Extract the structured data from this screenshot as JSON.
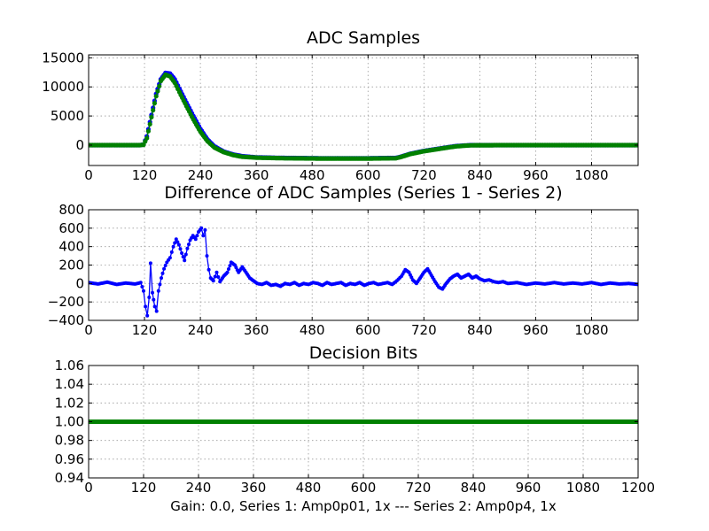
{
  "figure": {
    "xlabel": "Gain: 0.0, Series 1: Amp0p01, 1x --- Series 2: Amp0p4, 1x"
  },
  "chart_data": [
    {
      "type": "scatter",
      "title": "ADC Samples",
      "xlim": [
        0,
        1180
      ],
      "ylim": [
        -3500,
        15500
      ],
      "xticks": [
        0,
        120,
        240,
        360,
        480,
        600,
        720,
        840,
        960,
        1080
      ],
      "yticks": [
        0,
        5000,
        10000,
        15000
      ],
      "grid": true,
      "style": "dots connected by line",
      "series": [
        {
          "color": "#0000ff",
          "points": [
            [
              0,
              0
            ],
            [
              110,
              0
            ],
            [
              118,
              100
            ],
            [
              125,
              1500
            ],
            [
              135,
              5200
            ],
            [
              145,
              8800
            ],
            [
              155,
              11300
            ],
            [
              165,
              12400
            ],
            [
              175,
              12300
            ],
            [
              185,
              11300
            ],
            [
              195,
              9700
            ],
            [
              210,
              7300
            ],
            [
              225,
              5000
            ],
            [
              240,
              2800
            ],
            [
              255,
              1000
            ],
            [
              270,
              -200
            ],
            [
              290,
              -1100
            ],
            [
              310,
              -1600
            ],
            [
              330,
              -1900
            ],
            [
              360,
              -2100
            ],
            [
              420,
              -2200
            ],
            [
              500,
              -2250
            ],
            [
              600,
              -2250
            ],
            [
              660,
              -2200
            ],
            [
              670,
              -2000
            ],
            [
              690,
              -1500
            ],
            [
              720,
              -1000
            ],
            [
              760,
              -500
            ],
            [
              790,
              -150
            ],
            [
              820,
              0
            ],
            [
              900,
              0
            ],
            [
              1000,
              0
            ],
            [
              1180,
              0
            ]
          ]
        },
        {
          "color": "#008000",
          "points": [
            [
              0,
              0
            ],
            [
              110,
              0
            ],
            [
              118,
              60
            ],
            [
              125,
              1200
            ],
            [
              135,
              4800
            ],
            [
              145,
              8400
            ],
            [
              155,
              11000
            ],
            [
              165,
              12100
            ],
            [
              175,
              11800
            ],
            [
              185,
              10700
            ],
            [
              195,
              9100
            ],
            [
              210,
              6700
            ],
            [
              225,
              4400
            ],
            [
              240,
              2300
            ],
            [
              255,
              700
            ],
            [
              270,
              -400
            ],
            [
              290,
              -1200
            ],
            [
              310,
              -1700
            ],
            [
              330,
              -2000
            ],
            [
              360,
              -2150
            ],
            [
              420,
              -2250
            ],
            [
              500,
              -2300
            ],
            [
              600,
              -2300
            ],
            [
              660,
              -2250
            ],
            [
              670,
              -2050
            ],
            [
              690,
              -1550
            ],
            [
              720,
              -1050
            ],
            [
              760,
              -550
            ],
            [
              790,
              -200
            ],
            [
              820,
              -30
            ],
            [
              900,
              0
            ],
            [
              1000,
              0
            ],
            [
              1180,
              0
            ]
          ]
        }
      ]
    },
    {
      "type": "line",
      "title": "Difference of ADC Samples (Series 1 - Series 2)",
      "xlim": [
        0,
        1180
      ],
      "ylim": [
        -400,
        800
      ],
      "xticks": [
        0,
        120,
        240,
        360,
        480,
        600,
        720,
        840,
        960,
        1080
      ],
      "yticks": [
        -400,
        -200,
        0,
        200,
        400,
        600,
        800
      ],
      "grid": true,
      "style": "dots connected by line",
      "series": [
        {
          "color": "#0000ff",
          "points": [
            [
              0,
              10
            ],
            [
              20,
              -5
            ],
            [
              40,
              15
            ],
            [
              60,
              -10
            ],
            [
              80,
              5
            ],
            [
              100,
              -5
            ],
            [
              112,
              10
            ],
            [
              118,
              -80
            ],
            [
              122,
              -250
            ],
            [
              126,
              -350
            ],
            [
              130,
              -150
            ],
            [
              133,
              220
            ],
            [
              137,
              -100
            ],
            [
              142,
              -250
            ],
            [
              146,
              -300
            ],
            [
              150,
              -80
            ],
            [
              156,
              60
            ],
            [
              162,
              160
            ],
            [
              168,
              230
            ],
            [
              175,
              280
            ],
            [
              182,
              400
            ],
            [
              188,
              480
            ],
            [
              194,
              420
            ],
            [
              200,
              330
            ],
            [
              206,
              250
            ],
            [
              212,
              380
            ],
            [
              218,
              470
            ],
            [
              224,
              520
            ],
            [
              230,
              480
            ],
            [
              236,
              560
            ],
            [
              242,
              600
            ],
            [
              246,
              520
            ],
            [
              250,
              580
            ],
            [
              254,
              300
            ],
            [
              258,
              150
            ],
            [
              262,
              60
            ],
            [
              268,
              30
            ],
            [
              275,
              120
            ],
            [
              282,
              20
            ],
            [
              290,
              80
            ],
            [
              298,
              120
            ],
            [
              306,
              230
            ],
            [
              314,
              200
            ],
            [
              322,
              120
            ],
            [
              330,
              180
            ],
            [
              338,
              120
            ],
            [
              346,
              60
            ],
            [
              354,
              30
            ],
            [
              362,
              0
            ],
            [
              372,
              -10
            ],
            [
              382,
              10
            ],
            [
              392,
              -20
            ],
            [
              402,
              -10
            ],
            [
              412,
              -30
            ],
            [
              422,
              0
            ],
            [
              432,
              -10
            ],
            [
              442,
              10
            ],
            [
              452,
              -20
            ],
            [
              462,
              0
            ],
            [
              472,
              -10
            ],
            [
              482,
              10
            ],
            [
              492,
              0
            ],
            [
              502,
              -20
            ],
            [
              512,
              10
            ],
            [
              522,
              -10
            ],
            [
              532,
              0
            ],
            [
              542,
              10
            ],
            [
              552,
              -20
            ],
            [
              562,
              0
            ],
            [
              572,
              -10
            ],
            [
              582,
              10
            ],
            [
              592,
              -20
            ],
            [
              602,
              0
            ],
            [
              612,
              10
            ],
            [
              622,
              -10
            ],
            [
              632,
              0
            ],
            [
              642,
              10
            ],
            [
              652,
              -10
            ],
            [
              662,
              30
            ],
            [
              672,
              80
            ],
            [
              680,
              150
            ],
            [
              688,
              120
            ],
            [
              696,
              40
            ],
            [
              704,
              0
            ],
            [
              712,
              60
            ],
            [
              720,
              120
            ],
            [
              728,
              160
            ],
            [
              736,
              90
            ],
            [
              744,
              20
            ],
            [
              752,
              -40
            ],
            [
              760,
              -60
            ],
            [
              768,
              0
            ],
            [
              776,
              50
            ],
            [
              784,
              80
            ],
            [
              792,
              100
            ],
            [
              800,
              60
            ],
            [
              808,
              80
            ],
            [
              816,
              100
            ],
            [
              824,
              60
            ],
            [
              832,
              80
            ],
            [
              840,
              50
            ],
            [
              850,
              30
            ],
            [
              860,
              40
            ],
            [
              870,
              20
            ],
            [
              880,
              10
            ],
            [
              890,
              20
            ],
            [
              900,
              0
            ],
            [
              920,
              10
            ],
            [
              940,
              -10
            ],
            [
              960,
              5
            ],
            [
              980,
              -5
            ],
            [
              1000,
              10
            ],
            [
              1020,
              -5
            ],
            [
              1040,
              5
            ],
            [
              1060,
              -5
            ],
            [
              1080,
              10
            ],
            [
              1100,
              -10
            ],
            [
              1120,
              5
            ],
            [
              1140,
              -5
            ],
            [
              1160,
              0
            ],
            [
              1180,
              -10
            ]
          ]
        }
      ]
    },
    {
      "type": "scatter",
      "title": "Decision Bits",
      "xlim": [
        0,
        1200
      ],
      "ylim": [
        0.94,
        1.06
      ],
      "xticks": [
        0,
        120,
        240,
        360,
        480,
        600,
        720,
        840,
        960,
        1080,
        1200
      ],
      "yticks": [
        0.94,
        0.96,
        0.98,
        1.0,
        1.02,
        1.04,
        1.06
      ],
      "ytick_labels": [
        "0.94",
        "0.96",
        "0.98",
        "1.00",
        "1.02",
        "1.04",
        "1.06"
      ],
      "grid": true,
      "style": "dense markers",
      "series": [
        {
          "color": "#008000",
          "points": [
            [
              0,
              1.0
            ],
            [
              1200,
              1.0
            ]
          ]
        }
      ]
    }
  ]
}
